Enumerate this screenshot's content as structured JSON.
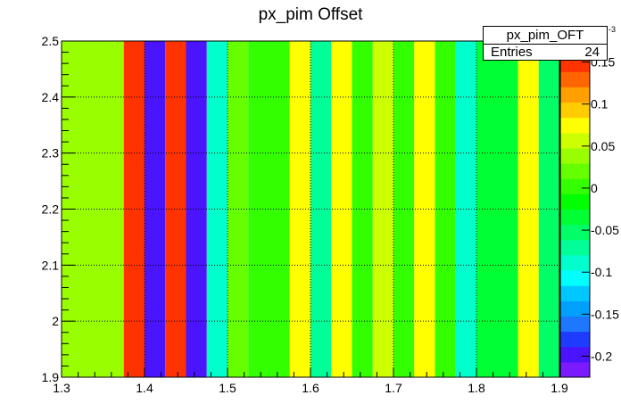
{
  "chart_data": {
    "type": "heatmap",
    "title": "px_pim Offset",
    "xlabel": "",
    "ylabel": "",
    "xlim": [
      1.3,
      1.9
    ],
    "ylim": [
      1.9,
      2.5
    ],
    "x_ticks": [
      "1.3",
      "1.4",
      "1.5",
      "1.6",
      "1.7",
      "1.8",
      "1.9"
    ],
    "y_ticks": [
      "1.9",
      "2",
      "2.1",
      "2.2",
      "2.3",
      "2.4",
      "2.5"
    ],
    "grid": true,
    "columns": [
      {
        "x0": 1.3,
        "x1": 1.375,
        "value": 0.035
      },
      {
        "x0": 1.375,
        "x1": 1.4,
        "value": 0.155
      },
      {
        "x0": 1.4,
        "x1": 1.425,
        "value": -0.205
      },
      {
        "x0": 1.425,
        "x1": 1.45,
        "value": 0.155
      },
      {
        "x0": 1.45,
        "x1": 1.475,
        "value": -0.195
      },
      {
        "x0": 1.475,
        "x1": 1.5,
        "value": -0.095
      },
      {
        "x0": 1.5,
        "x1": 1.525,
        "value": 0.02
      },
      {
        "x0": 1.525,
        "x1": 1.575,
        "value": 0.005
      },
      {
        "x0": 1.575,
        "x1": 1.6,
        "value": 0.08
      },
      {
        "x0": 1.6,
        "x1": 1.625,
        "value": -0.065
      },
      {
        "x0": 1.625,
        "x1": 1.65,
        "value": 0.08
      },
      {
        "x0": 1.65,
        "x1": 1.675,
        "value": 0.005
      },
      {
        "x0": 1.675,
        "x1": 1.7,
        "value": 0.06
      },
      {
        "x0": 1.7,
        "x1": 1.725,
        "value": 0.005
      },
      {
        "x0": 1.725,
        "x1": 1.75,
        "value": 0.08
      },
      {
        "x0": 1.75,
        "x1": 1.775,
        "value": 0.005
      },
      {
        "x0": 1.775,
        "x1": 1.8,
        "value": -0.095
      },
      {
        "x0": 1.8,
        "x1": 1.85,
        "value": -0.035
      },
      {
        "x0": 1.85,
        "x1": 1.875,
        "value": 0.08
      },
      {
        "x0": 1.875,
        "x1": 1.9,
        "value": -0.045
      }
    ],
    "colorbar": {
      "ticks": [
        "0.15",
        "0.1",
        "0.05",
        "0",
        "-0.05",
        "-0.1",
        "-0.15",
        "-0.2"
      ],
      "exponent": "-3",
      "min": -0.225,
      "max": 0.175,
      "colors": [
        "#7a1aff",
        "#4a14ff",
        "#1e3cff",
        "#1e78ff",
        "#00a0ff",
        "#00c8ff",
        "#00ffff",
        "#00ffcc",
        "#00ff99",
        "#00ff66",
        "#00ff33",
        "#00ff00",
        "#33ff00",
        "#66ff00",
        "#99ff00",
        "#ccff00",
        "#ffff00",
        "#ffcc00",
        "#ffa000",
        "#ff6600",
        "#ff3300",
        "#ff0000"
      ]
    }
  },
  "stats_box": {
    "name": "px_pim_OFT",
    "entries_label": "Entries",
    "entries_value": "24"
  }
}
